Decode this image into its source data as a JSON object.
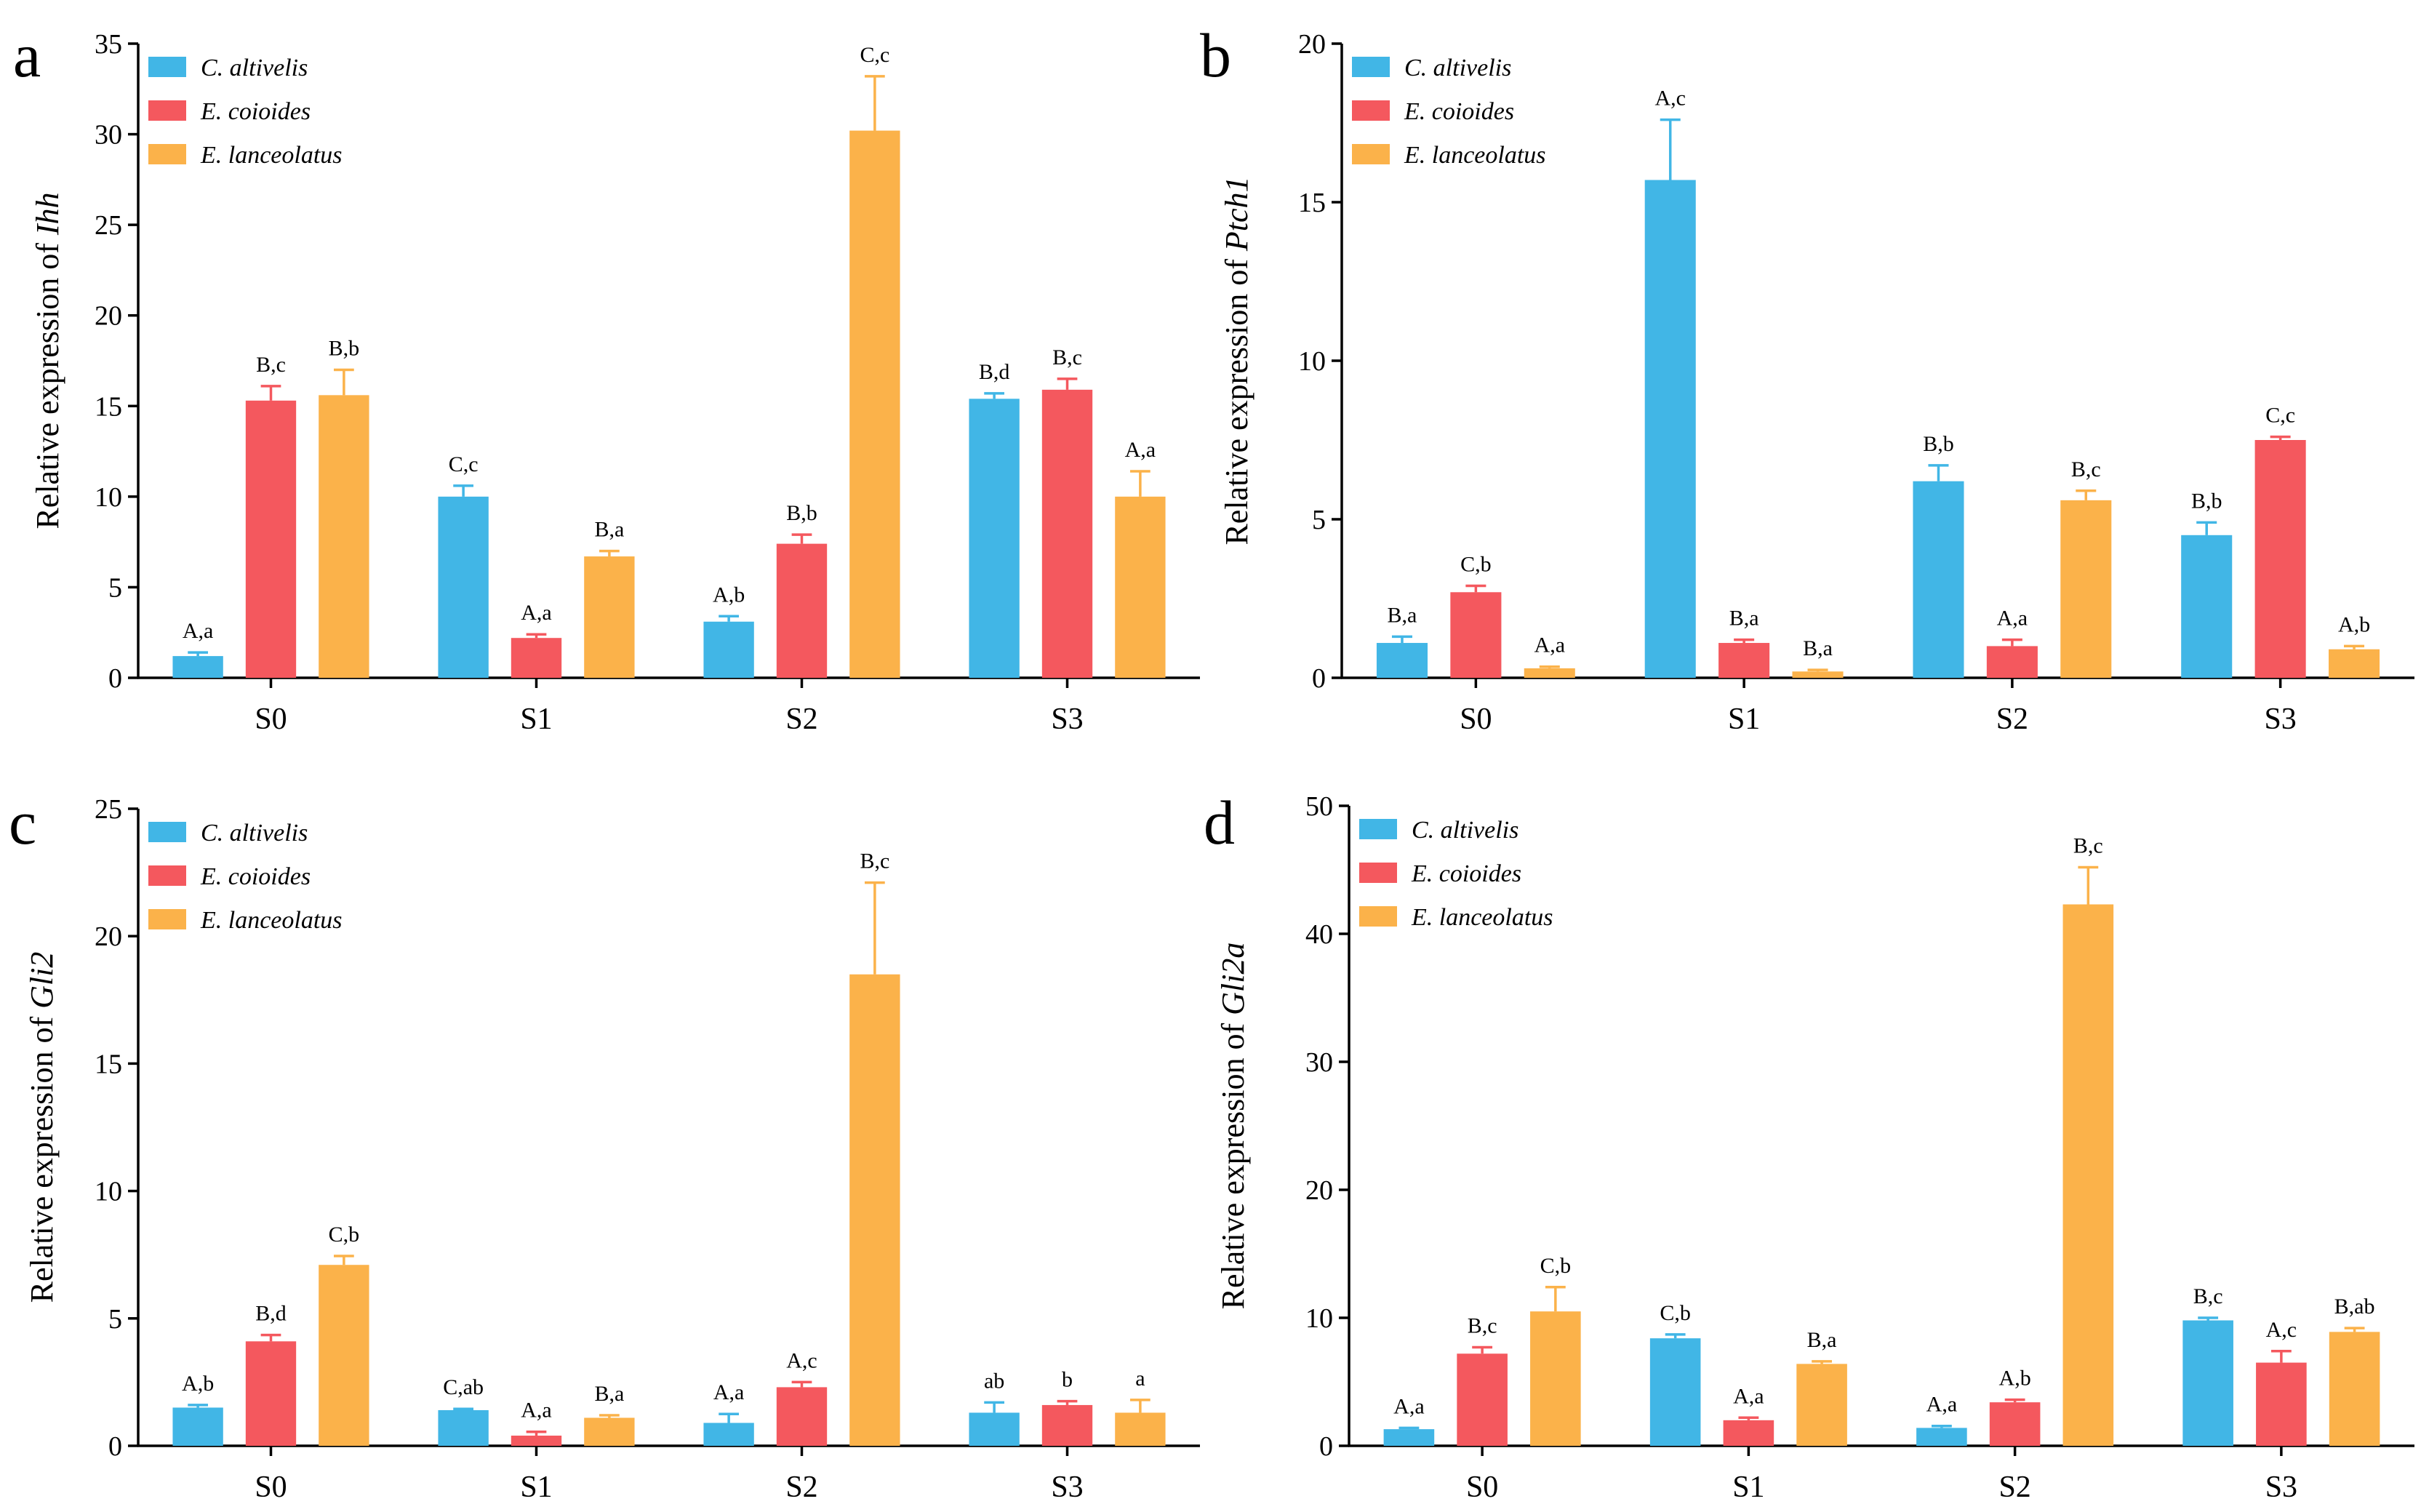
{
  "colors": {
    "C. altivelis": "#41b6e6",
    "E. coioides": "#f4585e",
    "E. lanceolatus": "#fbb24a"
  },
  "chart_data": [
    {
      "panel": "a",
      "type": "bar",
      "ylabel_prefix": "Relative expression of ",
      "ylabel_gene": "Ihh",
      "ylim": [
        0,
        35
      ],
      "yticks": [
        0,
        5,
        10,
        15,
        20,
        25,
        30,
        35
      ],
      "categories": [
        "S0",
        "S1",
        "S2",
        "S3"
      ],
      "legend_position": "top-left",
      "series": [
        {
          "name": "C. altivelis",
          "values": [
            1.2,
            10.0,
            3.1,
            15.4
          ],
          "errors": [
            0.2,
            0.6,
            0.3,
            0.3
          ],
          "labels": [
            "A,a",
            "C,c",
            "A,b",
            "B,d"
          ]
        },
        {
          "name": "E. coioides",
          "values": [
            15.3,
            2.2,
            7.4,
            15.9
          ],
          "errors": [
            0.8,
            0.2,
            0.5,
            0.6
          ],
          "labels": [
            "B,c",
            "A,a",
            "B,b",
            "B,c"
          ]
        },
        {
          "name": "E. lanceolatus",
          "values": [
            15.6,
            6.7,
            30.2,
            10.0
          ],
          "errors": [
            1.4,
            0.3,
            3.0,
            1.4
          ],
          "labels": [
            "B,b",
            "B,a",
            "C,c",
            "A,a"
          ]
        }
      ]
    },
    {
      "panel": "b",
      "type": "bar",
      "ylabel_prefix": "Relative expression of ",
      "ylabel_gene": "Ptch1",
      "ylim": [
        0,
        20
      ],
      "yticks": [
        0,
        5,
        10,
        15,
        20
      ],
      "categories": [
        "S0",
        "S1",
        "S2",
        "S3"
      ],
      "legend_position": "top-left",
      "series": [
        {
          "name": "C. altivelis",
          "values": [
            1.1,
            15.7,
            6.2,
            4.5
          ],
          "errors": [
            0.2,
            1.9,
            0.5,
            0.4
          ],
          "labels": [
            "B,a",
            "A,c",
            "B,b",
            "B,b"
          ]
        },
        {
          "name": "E. coioides",
          "values": [
            2.7,
            1.1,
            1.0,
            7.5
          ],
          "errors": [
            0.2,
            0.1,
            0.2,
            0.1
          ],
          "labels": [
            "C,b",
            "B,a",
            "A,a",
            "C,c"
          ]
        },
        {
          "name": "E. lanceolatus",
          "values": [
            0.3,
            0.2,
            5.6,
            0.9
          ],
          "errors": [
            0.05,
            0.05,
            0.3,
            0.1
          ],
          "labels": [
            "A,a",
            "B,a",
            "B,c",
            "A,b"
          ]
        }
      ]
    },
    {
      "panel": "c",
      "type": "bar",
      "ylabel_prefix": "Relative expression of ",
      "ylabel_gene": "Gli2",
      "ylim": [
        0,
        25
      ],
      "yticks": [
        0,
        5,
        10,
        15,
        20,
        25
      ],
      "categories": [
        "S0",
        "S1",
        "S2",
        "S3"
      ],
      "legend_position": "top-left",
      "series": [
        {
          "name": "C. altivelis",
          "values": [
            1.5,
            1.4,
            0.9,
            1.3
          ],
          "errors": [
            0.1,
            0.05,
            0.35,
            0.4
          ],
          "labels": [
            "A,b",
            "C,ab",
            "A,a",
            "ab"
          ]
        },
        {
          "name": "E. coioides",
          "values": [
            4.1,
            0.4,
            2.3,
            1.6
          ],
          "errors": [
            0.25,
            0.15,
            0.2,
            0.15
          ],
          "labels": [
            "B,d",
            "A,a",
            "A,c",
            "b"
          ]
        },
        {
          "name": "E. lanceolatus",
          "values": [
            7.1,
            1.1,
            18.5,
            1.3
          ],
          "errors": [
            0.35,
            0.1,
            3.6,
            0.5
          ],
          "labels": [
            "C,b",
            "B,a",
            "B,c",
            "a"
          ]
        }
      ]
    },
    {
      "panel": "d",
      "type": "bar",
      "ylabel_prefix": "Relative expression of ",
      "ylabel_gene": "Gli2a",
      "ylim": [
        0,
        50
      ],
      "yticks": [
        0,
        10,
        20,
        30,
        40,
        50
      ],
      "categories": [
        "S0",
        "S1",
        "S2",
        "S3"
      ],
      "legend_position": "top-left",
      "series": [
        {
          "name": "C. altivelis",
          "values": [
            1.3,
            8.4,
            1.4,
            9.8
          ],
          "errors": [
            0.1,
            0.3,
            0.15,
            0.2
          ],
          "labels": [
            "A,a",
            "C,b",
            "A,a",
            "B,c"
          ]
        },
        {
          "name": "E. coioides",
          "values": [
            7.2,
            2.0,
            3.4,
            6.5
          ],
          "errors": [
            0.5,
            0.2,
            0.2,
            0.9
          ],
          "labels": [
            "B,c",
            "A,a",
            "A,b",
            "A,c"
          ]
        },
        {
          "name": "E. lanceolatus",
          "values": [
            10.5,
            6.4,
            42.3,
            8.9
          ],
          "errors": [
            1.9,
            0.2,
            2.9,
            0.3
          ],
          "labels": [
            "C,b",
            "B,a",
            "B,c",
            "B,ab"
          ]
        }
      ]
    }
  ]
}
